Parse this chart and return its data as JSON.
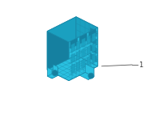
{
  "background_color": "#ffffff",
  "part_fill_color": "#29c0e0",
  "part_edge_color": "#1a8aaa",
  "part_dark_color": "#1aa0c0",
  "part_darker_color": "#1580a0",
  "leader_color": "#555555",
  "label_text": "1",
  "label_fontsize": 6,
  "fig_width": 2.0,
  "fig_height": 1.47,
  "dpi": 100
}
